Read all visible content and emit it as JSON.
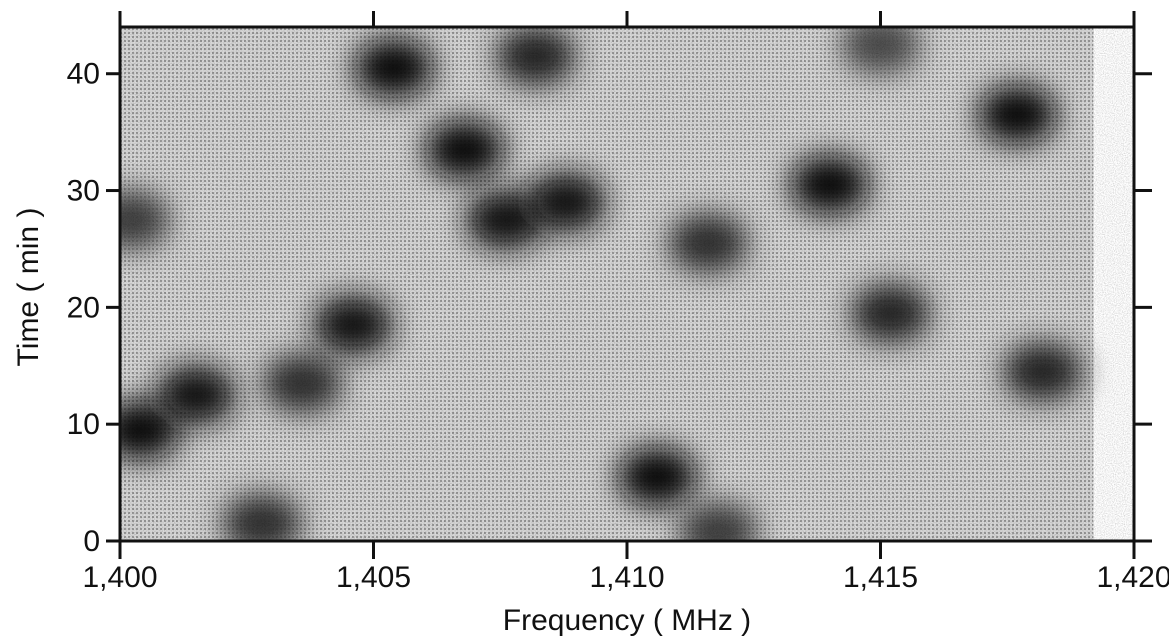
{
  "chart_data": {
    "type": "heatmap",
    "title": "",
    "xlabel": "Frequency ( MHz )",
    "ylabel": "Time ( min )",
    "xlim": [
      1400,
      1420
    ],
    "ylim": [
      0,
      44
    ],
    "x_ticks": [
      1400,
      1405,
      1410,
      1415,
      1420
    ],
    "x_tick_labels": [
      "1,400",
      "1,405",
      "1,410",
      "1,415",
      "1,420"
    ],
    "y_ticks": [
      0,
      10,
      20,
      30,
      40
    ],
    "y_tick_labels": [
      "0",
      "10",
      "20",
      "30",
      "40"
    ],
    "colormap": "grayscale, dark = high intensity",
    "grid": false,
    "data_coverage_x": [
      1400,
      1419.2
    ],
    "dark_regions": [
      {
        "freq": 1400.4,
        "time": 9.5,
        "intensity": 0.95
      },
      {
        "freq": 1401.5,
        "time": 12.5,
        "intensity": 0.9
      },
      {
        "freq": 1400.2,
        "time": 27.5,
        "intensity": 0.75
      },
      {
        "freq": 1402.8,
        "time": 1.5,
        "intensity": 0.8
      },
      {
        "freq": 1403.6,
        "time": 13.5,
        "intensity": 0.8
      },
      {
        "freq": 1404.6,
        "time": 18.5,
        "intensity": 0.9
      },
      {
        "freq": 1405.4,
        "time": 40.5,
        "intensity": 0.95
      },
      {
        "freq": 1406.8,
        "time": 33.5,
        "intensity": 0.95
      },
      {
        "freq": 1407.6,
        "time": 27.5,
        "intensity": 0.9
      },
      {
        "freq": 1408.2,
        "time": 41.5,
        "intensity": 0.85
      },
      {
        "freq": 1408.8,
        "time": 29.0,
        "intensity": 0.9
      },
      {
        "freq": 1410.6,
        "time": 5.5,
        "intensity": 0.95
      },
      {
        "freq": 1411.6,
        "time": 25.5,
        "intensity": 0.8
      },
      {
        "freq": 1411.8,
        "time": 0.8,
        "intensity": 0.75
      },
      {
        "freq": 1414.0,
        "time": 30.5,
        "intensity": 0.95
      },
      {
        "freq": 1415.0,
        "time": 42.5,
        "intensity": 0.7
      },
      {
        "freq": 1415.2,
        "time": 19.5,
        "intensity": 0.85
      },
      {
        "freq": 1417.7,
        "time": 36.5,
        "intensity": 0.95
      },
      {
        "freq": 1418.2,
        "time": 14.5,
        "intensity": 0.85
      }
    ]
  }
}
